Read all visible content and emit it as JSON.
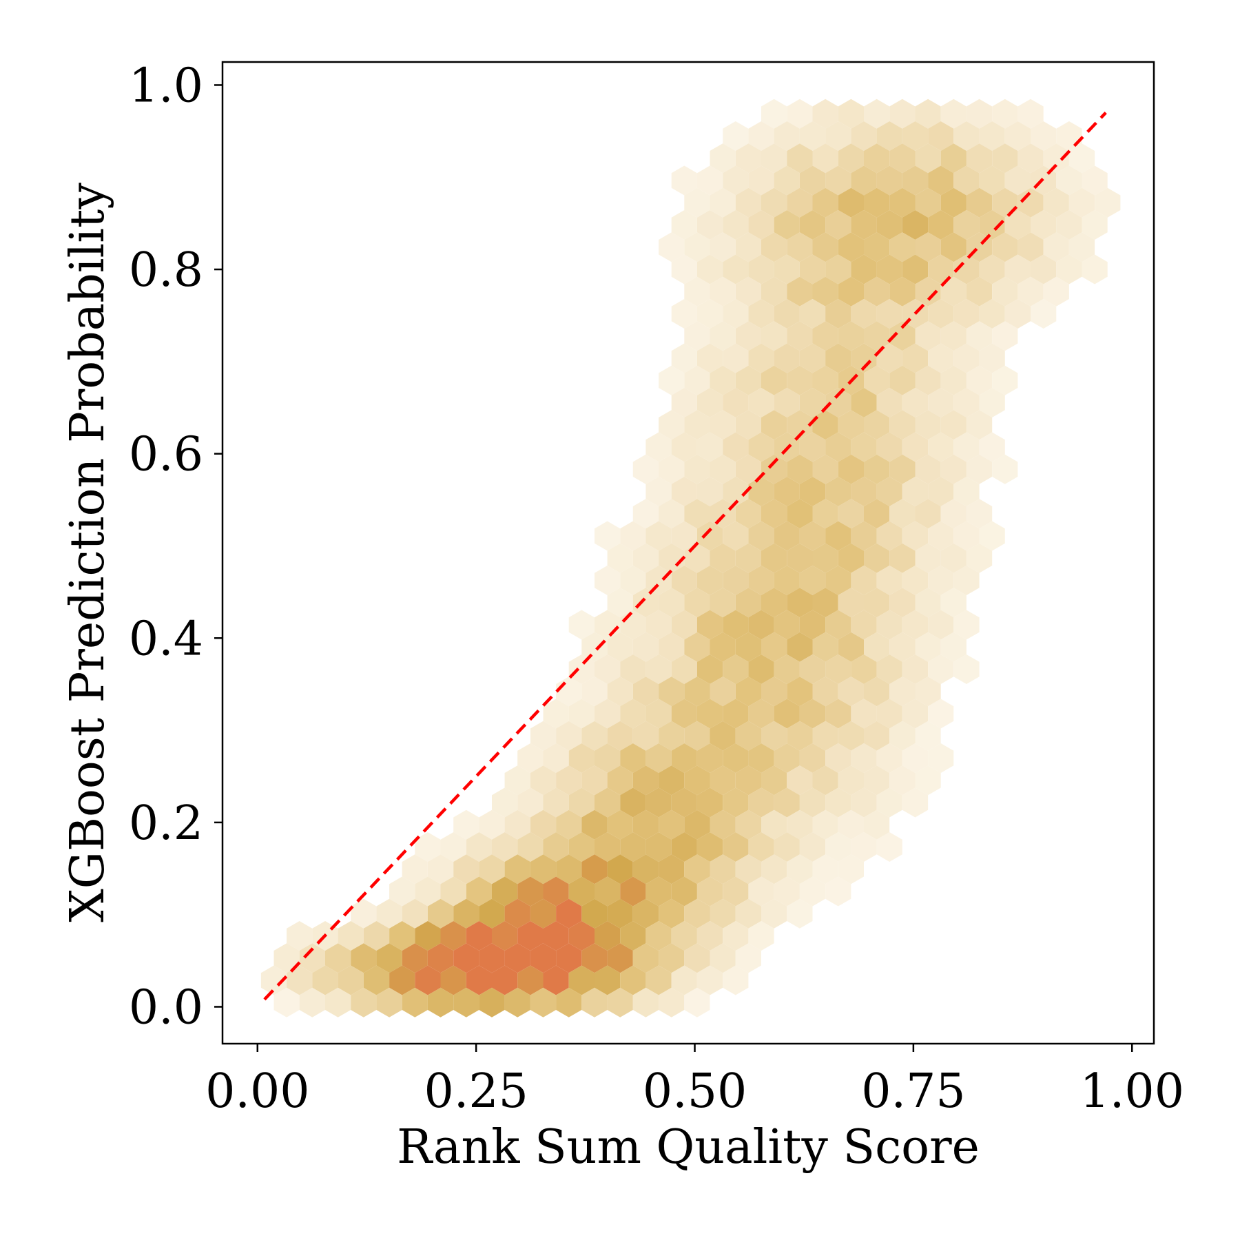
{
  "chart_data": {
    "type": "hexbin",
    "title": "",
    "xlabel": "Rank Sum Quality Score",
    "ylabel": "XGBoost Prediction Probability",
    "xlim": [
      -0.04,
      1.025
    ],
    "ylim": [
      -0.04,
      1.025
    ],
    "xticks": [
      0.0,
      0.25,
      0.5,
      0.75,
      1.0
    ],
    "xtick_labels": [
      "0.00",
      "0.25",
      "0.50",
      "0.75",
      "1.00"
    ],
    "yticks": [
      0.0,
      0.2,
      0.4,
      0.6,
      0.8,
      1.0
    ],
    "ytick_labels": [
      "0.0",
      "0.2",
      "0.4",
      "0.6",
      "0.8",
      "1.0"
    ],
    "grid": false,
    "colormap": [
      "#fffdf8",
      "#f3e3c2",
      "#e2c27a",
      "#d2a84e",
      "#e07a48"
    ],
    "density_clusters": [
      {
        "x": 0.24,
        "y": 0.04,
        "sx": 0.1,
        "sy": 0.03,
        "w": 1.0
      },
      {
        "x": 0.33,
        "y": 0.09,
        "sx": 0.08,
        "sy": 0.05,
        "w": 0.75
      },
      {
        "x": 0.44,
        "y": 0.18,
        "sx": 0.08,
        "sy": 0.08,
        "w": 0.45
      },
      {
        "x": 0.58,
        "y": 0.36,
        "sx": 0.1,
        "sy": 0.12,
        "w": 0.38
      },
      {
        "x": 0.66,
        "y": 0.62,
        "sx": 0.1,
        "sy": 0.14,
        "w": 0.32
      },
      {
        "x": 0.74,
        "y": 0.86,
        "sx": 0.12,
        "sy": 0.07,
        "w": 0.4
      }
    ],
    "reference_line": {
      "x": [
        0.0,
        0.97
      ],
      "y": [
        0.0,
        0.97
      ],
      "color": "#ff0000",
      "style": "dashed"
    }
  }
}
